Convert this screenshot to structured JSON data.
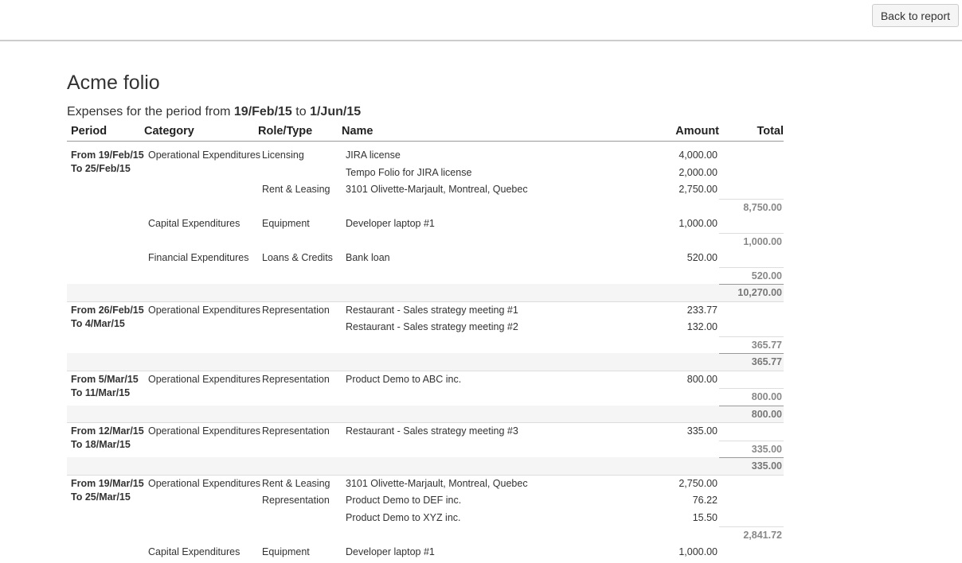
{
  "toolbar": {
    "back_button": "Back to report"
  },
  "report": {
    "title": "Acme folio",
    "subtitle": {
      "prefix": "Expenses for the period from",
      "start": "19/Feb/15",
      "middle": "to",
      "end": "1/Jun/15"
    },
    "columns": [
      "Period",
      "Category",
      "Role/Type",
      "Name",
      "Amount",
      "Total"
    ],
    "periods": [
      {
        "from": "From 19/Feb/15",
        "to": "To 25/Feb/15",
        "categories": [
          {
            "name": "Operational Expenditures",
            "roles": [
              {
                "name": "Licensing",
                "items": [
                  {
                    "name": "JIRA license",
                    "amount": "4,000.00"
                  },
                  {
                    "name": "Tempo Folio for JIRA license",
                    "amount": "2,000.00"
                  }
                ]
              },
              {
                "name": "Rent & Leasing",
                "items": [
                  {
                    "name": "3101 Olivette-Marjault, Montreal, Quebec",
                    "amount": "2,750.00"
                  }
                ]
              }
            ],
            "subtotal": "8,750.00"
          },
          {
            "name": "Capital Expenditures",
            "roles": [
              {
                "name": "Equipment",
                "items": [
                  {
                    "name": "Developer laptop #1",
                    "amount": "1,000.00"
                  }
                ]
              }
            ],
            "subtotal": "1,000.00"
          },
          {
            "name": "Financial Expenditures",
            "roles": [
              {
                "name": "Loans & Credits",
                "items": [
                  {
                    "name": "Bank loan",
                    "amount": "520.00"
                  }
                ]
              }
            ],
            "subtotal": "520.00"
          }
        ],
        "total": "10,270.00"
      },
      {
        "from": "From 26/Feb/15",
        "to": "To 4/Mar/15",
        "categories": [
          {
            "name": "Operational Expenditures",
            "roles": [
              {
                "name": "Representation",
                "items": [
                  {
                    "name": "Restaurant - Sales strategy meeting #1",
                    "amount": "233.77"
                  },
                  {
                    "name": "Restaurant - Sales strategy meeting #2",
                    "amount": "132.00"
                  }
                ]
              }
            ],
            "subtotal": "365.77"
          }
        ],
        "total": "365.77"
      },
      {
        "from": "From 5/Mar/15",
        "to": "To 11/Mar/15",
        "categories": [
          {
            "name": "Operational Expenditures",
            "roles": [
              {
                "name": "Representation",
                "items": [
                  {
                    "name": "Product Demo to ABC inc.",
                    "amount": "800.00"
                  }
                ]
              }
            ],
            "subtotal": "800.00"
          }
        ],
        "total": "800.00"
      },
      {
        "from": "From 12/Mar/15",
        "to": "To 18/Mar/15",
        "categories": [
          {
            "name": "Operational Expenditures",
            "roles": [
              {
                "name": "Representation",
                "items": [
                  {
                    "name": "Restaurant - Sales strategy meeting #3",
                    "amount": "335.00"
                  }
                ]
              }
            ],
            "subtotal": "335.00"
          }
        ],
        "total": "335.00"
      },
      {
        "from": "From 19/Mar/15",
        "to": "To 25/Mar/15",
        "categories": [
          {
            "name": "Operational Expenditures",
            "roles": [
              {
                "name": "Rent & Leasing",
                "items": [
                  {
                    "name": "3101 Olivette-Marjault, Montreal, Quebec",
                    "amount": "2,750.00"
                  }
                ]
              },
              {
                "name": "Representation",
                "items": [
                  {
                    "name": "Product Demo to DEF inc.",
                    "amount": "76.22"
                  },
                  {
                    "name": "Product Demo to XYZ inc.",
                    "amount": "15.50"
                  }
                ]
              }
            ],
            "subtotal": "2,841.72"
          },
          {
            "name": "Capital Expenditures",
            "roles": [
              {
                "name": "Equipment",
                "items": [
                  {
                    "name": "Developer laptop #1",
                    "amount": "1,000.00"
                  }
                ]
              }
            ]
          }
        ]
      }
    ]
  }
}
